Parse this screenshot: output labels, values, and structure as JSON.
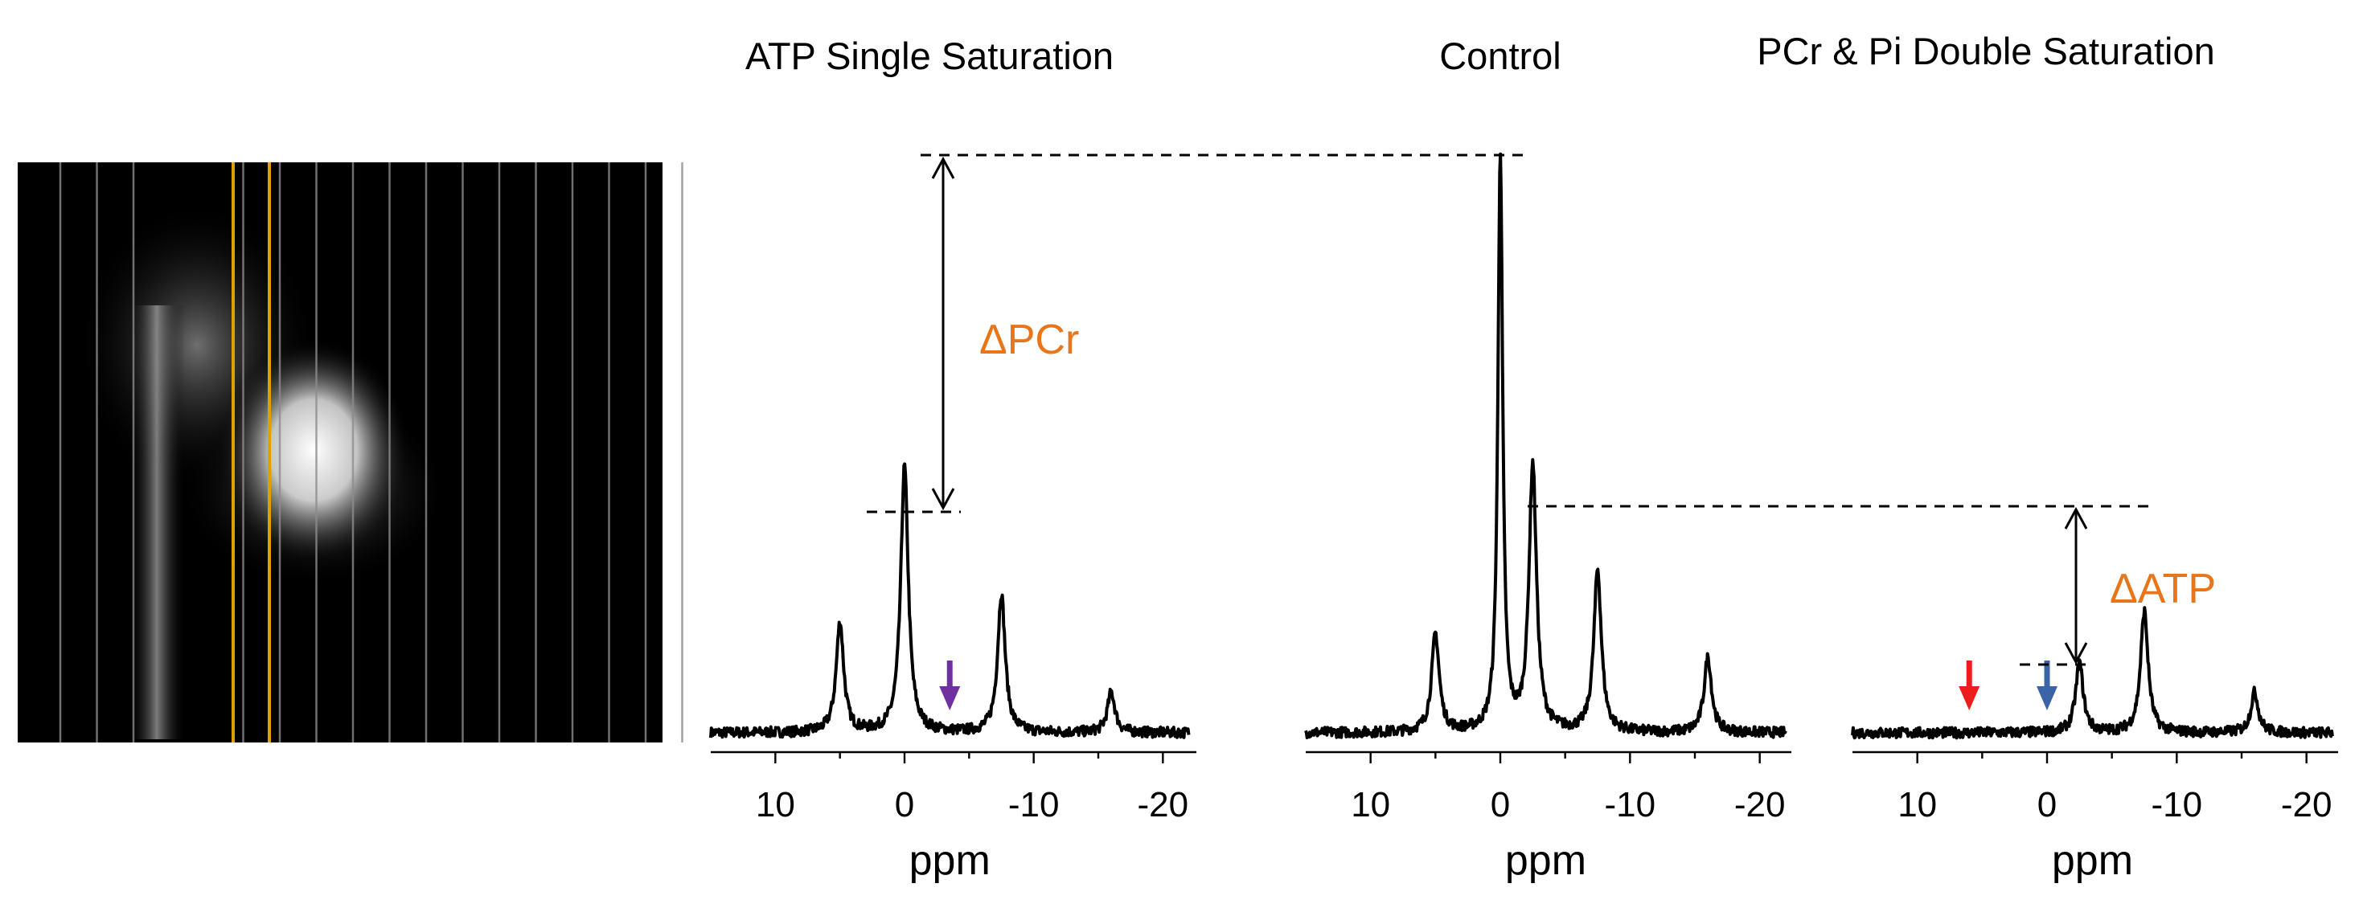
{
  "image": {
    "description_colors": {
      "slice_lines": "#8c8c8c",
      "selected_slice_lines": "#e0a000",
      "delta_text": "#e8751a",
      "red_arrow": "#ee1c1c",
      "blue_arrow": "#3a63a8",
      "purple_arrow": "#7030a0"
    },
    "icon": "mri-image-with-slice-lines"
  },
  "chart_data": [
    {
      "type": "line",
      "title": "ATP Single Saturation",
      "xlabel": "ppm",
      "xlim": [
        15,
        -22
      ],
      "xticks": [
        "10",
        "0",
        "-10",
        "-20"
      ],
      "peaks": [
        {
          "ppm": 5.0,
          "height": 0.19
        },
        {
          "ppm": 0.0,
          "height": 0.46
        },
        {
          "ppm": -7.5,
          "height": 0.24
        },
        {
          "ppm": -16.0,
          "height": 0.07
        }
      ],
      "marker": {
        "type": "arrow",
        "ppm": -3.5,
        "color": "#7030a0"
      }
    },
    {
      "type": "line",
      "title": "Control",
      "xlabel": "ppm",
      "xlim": [
        15,
        -22
      ],
      "xticks": [
        "10",
        "0",
        "-10",
        "-20"
      ],
      "peaks": [
        {
          "ppm": 5.0,
          "height": 0.17
        },
        {
          "ppm": 0.0,
          "height": 1.0
        },
        {
          "ppm": -2.5,
          "height": 0.46
        },
        {
          "ppm": -7.5,
          "height": 0.28
        },
        {
          "ppm": -16.0,
          "height": 0.13
        }
      ]
    },
    {
      "type": "line",
      "title": "PCr & Pi Double Saturation",
      "xlabel": "ppm",
      "xlim": [
        15,
        -22
      ],
      "xticks": [
        "10",
        "0",
        "-10",
        "-20"
      ],
      "peaks": [
        {
          "ppm": -2.5,
          "height": 0.12
        },
        {
          "ppm": -7.5,
          "height": 0.21
        },
        {
          "ppm": -16.0,
          "height": 0.07
        }
      ],
      "markers": [
        {
          "type": "arrow",
          "ppm": 6.0,
          "color": "#ee1c1c"
        },
        {
          "type": "arrow",
          "ppm": 0.0,
          "color": "#3a63a8"
        }
      ]
    }
  ],
  "annotations": {
    "delta_pcr": "ΔPCr",
    "delta_atp": "ΔATP"
  }
}
